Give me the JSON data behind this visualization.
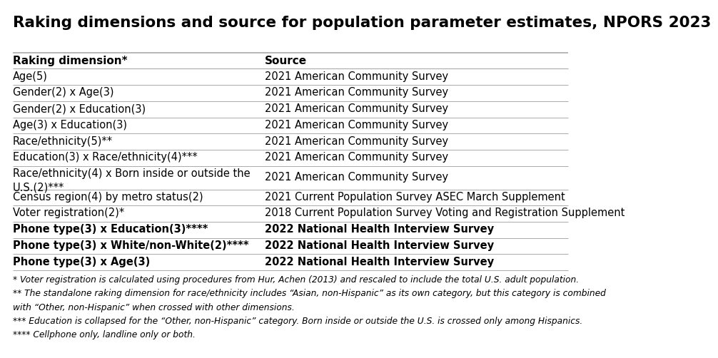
{
  "title": "Raking dimensions and source for population parameter estimates, NPORS 2023",
  "col1_header": "Raking dimension*",
  "col2_header": "Source",
  "rows": [
    [
      "Age(5)",
      "2021 American Community Survey"
    ],
    [
      "Gender(2) x Age(3)",
      "2021 American Community Survey"
    ],
    [
      "Gender(2) x Education(3)",
      "2021 American Community Survey"
    ],
    [
      "Age(3) x Education(3)",
      "2021 American Community Survey"
    ],
    [
      "Race/ethnicity(5)**",
      "2021 American Community Survey"
    ],
    [
      "Education(3) x Race/ethnicity(4)***",
      "2021 American Community Survey"
    ],
    [
      "Race/ethnicity(4) x Born inside or outside the\nU.S.(2)***",
      "2021 American Community Survey"
    ],
    [
      "Census region(4) by metro status(2)",
      "2021 Current Population Survey ASEC March Supplement"
    ],
    [
      "Voter registration(2)*",
      "2018 Current Population Survey Voting and Registration Supplement"
    ],
    [
      "Phone type(3) x Education(3)****",
      "2022 National Health Interview Survey"
    ],
    [
      "Phone type(3) x White/non-White(2)****",
      "2022 National Health Interview Survey"
    ],
    [
      "Phone type(3) x Age(3)",
      "2022 National Health Interview Survey"
    ]
  ],
  "footnotes": [
    "* Voter registration is calculated using procedures from Hur, Achen (2013) and rescaled to include the total U.S. adult population.",
    "** The standalone raking dimension for race/ethnicity includes “Asian, non-Hispanic” as its own category, but this category is combined",
    "with “Other, non-Hispanic” when crossed with other dimensions.",
    "*** Education is collapsed for the “Other, non-Hispanic” category. Born inside or outside the U.S. is crossed only among Hispanics.",
    "**** Cellphone only, landline only or both."
  ],
  "bg_color": "#ffffff",
  "text_color": "#000000",
  "header_fontsize": 11,
  "title_fontsize": 15.5,
  "row_fontsize": 10.5,
  "footnote_fontsize": 8.8,
  "col_split": 0.435,
  "line_color": "#aaaaaa",
  "bold_rows": [
    9,
    10,
    11
  ]
}
